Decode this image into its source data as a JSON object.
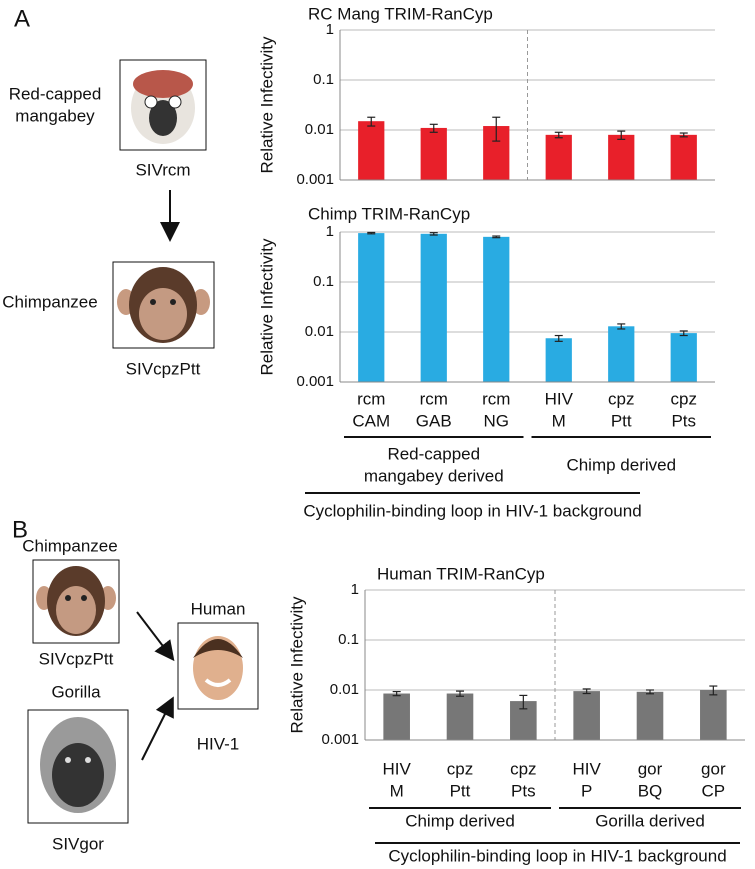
{
  "chart_data": [
    {
      "type": "bar",
      "title": "RC Mang TRIM-RanCyp",
      "ylabel": "Relative Infectivity",
      "categories": [
        null,
        null,
        null,
        null,
        null,
        null
      ],
      "values": [
        0.015,
        0.011,
        0.012,
        0.008,
        0.008,
        0.008
      ],
      "errors": [
        0.003,
        0.002,
        0.006,
        0.001,
        0.0015,
        0.0007
      ],
      "color": "#e8202a",
      "log_y": true,
      "grid": true,
      "divider": true,
      "ylim": [
        0.001,
        1
      ],
      "yticks": [
        0.001,
        0.01,
        0.1,
        1
      ]
    },
    {
      "type": "bar",
      "title": "Chimp TRIM-RanCyp",
      "ylabel": "Relative Infectivity",
      "categories": [
        [
          "rcm",
          "CAM"
        ],
        [
          "rcm",
          "GAB"
        ],
        [
          "rcm",
          "NG"
        ],
        [
          "HIV",
          "M"
        ],
        [
          "cpz",
          "Ptt"
        ],
        [
          "cpz",
          "Pts"
        ]
      ],
      "values": [
        0.95,
        0.92,
        0.8,
        0.0075,
        0.013,
        0.0095
      ],
      "errors": [
        0.03,
        0.05,
        0.03,
        0.001,
        0.0015,
        0.001
      ],
      "groups": [
        [
          "Red-capped",
          "mangabey derived"
        ],
        [
          "Chimp derived"
        ]
      ],
      "xlabel": "Cyclophilin-binding loop in HIV-1 background",
      "color": "#29abe2",
      "log_y": true,
      "grid": true,
      "divider": false,
      "ylim": [
        0.001,
        1
      ],
      "yticks": [
        0.001,
        0.01,
        0.1,
        1
      ]
    },
    {
      "type": "bar",
      "title": "Human TRIM-RanCyp",
      "ylabel": "Relative Infectivity",
      "categories": [
        [
          "HIV",
          "M"
        ],
        [
          "cpz",
          "Ptt"
        ],
        [
          "cpz",
          "Pts"
        ],
        [
          "HIV",
          "P"
        ],
        [
          "gor",
          "BQ"
        ],
        [
          "gor",
          "CP"
        ]
      ],
      "values": [
        0.0085,
        0.0085,
        0.006,
        0.0095,
        0.0092,
        0.01
      ],
      "errors": [
        0.0008,
        0.001,
        0.0018,
        0.001,
        0.0008,
        0.002
      ],
      "groups": [
        [
          "Chimp derived"
        ],
        [
          "Gorilla derived"
        ]
      ],
      "xlabel": "Cyclophilin-binding loop in HIV-1 background",
      "color": "#777777",
      "log_y": true,
      "grid": true,
      "divider": true,
      "ylim": [
        0.001,
        1
      ],
      "yticks": [
        0.001,
        0.01,
        0.1,
        1
      ]
    }
  ],
  "figure": {
    "panel_a": {
      "letter": "A",
      "mangabey": [
        "Red-capped",
        "mangabey"
      ],
      "mangabey_virus": "SIVrcm",
      "chimp": "Chimpanzee",
      "chimp_virus": "SIVcpzPtt"
    },
    "panel_b": {
      "letter": "B",
      "chimp": "Chimpanzee",
      "chimp_virus": "SIVcpzPtt",
      "gorilla": "Gorilla",
      "gorilla_virus": "SIVgor",
      "human": "Human",
      "human_virus": "HIV-1"
    }
  }
}
